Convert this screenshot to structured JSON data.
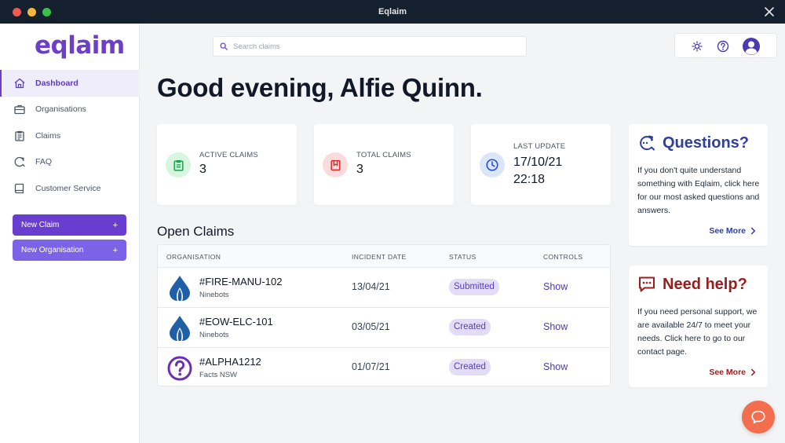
{
  "window": {
    "title": "Eqlaim"
  },
  "sidebar": {
    "logo": "eqlaim",
    "items": [
      {
        "label": "Dashboard",
        "icon": "home-icon"
      },
      {
        "label": "Organisations",
        "icon": "briefcase-icon"
      },
      {
        "label": "Claims",
        "icon": "clipboard-icon"
      },
      {
        "label": "FAQ",
        "icon": "chat-refresh-icon"
      },
      {
        "label": "Customer Service",
        "icon": "book-icon"
      }
    ],
    "new_claim": "New Claim",
    "new_org": "New Organisation",
    "plus": "+"
  },
  "search": {
    "placeholder": "Search claims"
  },
  "header": {
    "icons": [
      "sun-icon",
      "help-icon",
      "user-avatar-icon"
    ]
  },
  "greeting": "Good evening, Alfie Quinn.",
  "stats": [
    {
      "label": "ACTIVE CLAIMS",
      "value": "3",
      "icon": "clipboard-check-icon",
      "color": "#16a34a"
    },
    {
      "label": "TOTAL CLAIMS",
      "value": "3",
      "icon": "files-icon",
      "color": "#dc2626"
    },
    {
      "label": "LAST UPDATE",
      "value_line1": "17/10/21",
      "value_line2": "22:18",
      "icon": "clock-icon",
      "color": "#1d4ed8"
    }
  ],
  "open_claims": {
    "title": "Open Claims",
    "columns": [
      "ORGANISATION",
      "INCIDENT DATE",
      "STATUS",
      "CONTROLS"
    ],
    "rows": [
      {
        "id": "#FIRE-MANU-102",
        "org": "Ninebots",
        "date": "13/04/21",
        "status": "Submitted",
        "control": "Show",
        "logo": "drop-logo-icon"
      },
      {
        "id": "#EOW-ELC-101",
        "org": "Ninebots",
        "date": "03/05/21",
        "status": "Created",
        "control": "Show",
        "logo": "drop-logo-icon"
      },
      {
        "id": "#ALPHA1212",
        "org": "Facts NSW",
        "date": "01/07/21",
        "status": "Created",
        "control": "Show",
        "logo": "question-logo-icon"
      }
    ]
  },
  "questions": {
    "title": "Questions?",
    "body": "If you don't quite understand something with Eqlaim, click here for our most asked questions and answers.",
    "link": "See More"
  },
  "help": {
    "title": "Need help?",
    "body": "If you need personal support, we are available 24/7 to meet your needs. Click here to go to our contact page.",
    "link": "See More"
  },
  "colors": {
    "accent": "#6a3dd1",
    "titlebar": "#14202e",
    "chat": "#f36d4f"
  }
}
